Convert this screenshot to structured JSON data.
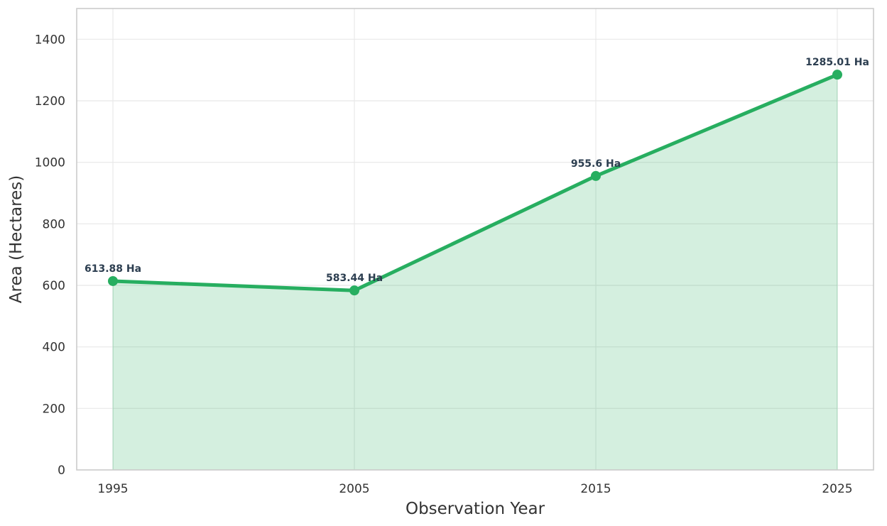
{
  "chart_data": {
    "type": "area",
    "title": "",
    "xlabel": "Observation Year",
    "ylabel": "Area (Hectares)",
    "x": [
      1995,
      2005,
      2015,
      2025
    ],
    "values": [
      613.88,
      583.44,
      955.6,
      1285.01
    ],
    "data_labels": [
      "613.88 Ha",
      "583.44 Ha",
      "955.6 Ha",
      "1285.01 Ha"
    ],
    "xlim": [
      1993.5,
      2026.5
    ],
    "ylim": [
      0,
      1500
    ],
    "xticks": [
      "1995",
      "2005",
      "2015",
      "2025"
    ],
    "yticks": [
      "0",
      "200",
      "400",
      "600",
      "800",
      "1000",
      "1200",
      "1400"
    ],
    "grid": true,
    "legend": "none",
    "colors": {
      "line": "#27ae60",
      "fill": "#27ae60",
      "data_label": "#2c3e50",
      "grid": "#e8e8e8",
      "frame": "#cccccc"
    }
  }
}
